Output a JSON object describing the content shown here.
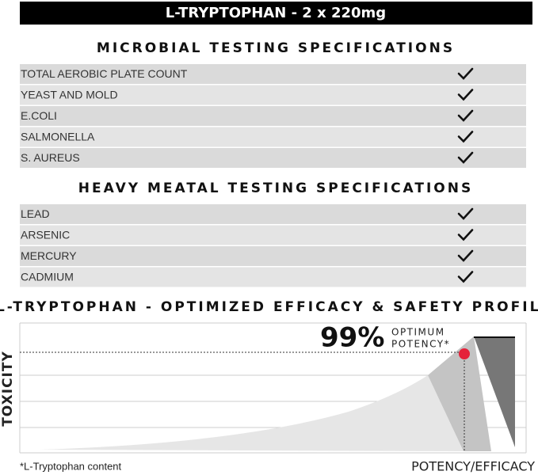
{
  "header": {
    "title": "L-TRYPTOPHAN - 2 x 220mg"
  },
  "sections": [
    {
      "title": "MICROBIAL TESTING SPECIFICATIONS",
      "rows": [
        "TOTAL AEROBIC PLATE COUNT",
        "YEAST AND MOLD",
        "E.COLI",
        "SALMONELLA",
        "S. AUREUS"
      ]
    },
    {
      "title": "HEAVY MEATAL TESTING SPECIFICATIONS",
      "rows": [
        "LEAD",
        "ARSENIC",
        "MERCURY",
        "CADMIUM"
      ]
    }
  ],
  "profile": {
    "title": "L-TRYPTOPHAN - OPTIMIZED EFFICACY & SAFETY PROFILE",
    "highlight": "99%",
    "highlight_note": [
      "OPTIMUM",
      "POTENCY*"
    ],
    "y_label": "TOXICITY",
    "x_label": "POTENCY/EFFICACY",
    "footnote": "*L-Tryptophan content"
  }
}
